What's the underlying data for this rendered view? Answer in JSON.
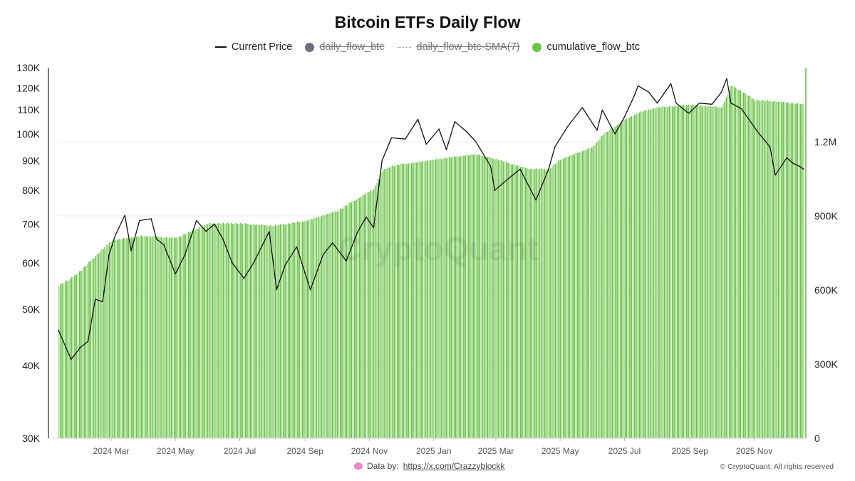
{
  "chart_data": {
    "type": "bar",
    "title": "Bitcoin ETFs Daily Flow",
    "legend": [
      {
        "label": "Current Price",
        "kind": "line",
        "color": "#111111",
        "disabled": false
      },
      {
        "label": "daily_flow_btc",
        "kind": "dot",
        "color": "#6e6e82",
        "disabled": true
      },
      {
        "label": "daily_flow_btc-SMA(7)",
        "kind": "dotted",
        "color": "#999999",
        "disabled": true
      },
      {
        "label": "cumulative_flow_btc",
        "kind": "dot",
        "color": "#6cc24a",
        "disabled": false
      }
    ],
    "legend_position": "top-center",
    "x_ticks": [
      "2024 Mar",
      "2024 May",
      "2024 Jul",
      "2024 Sep",
      "2024 Nov",
      "2025 Jan",
      "2025 Mar",
      "2025 May",
      "2025 Jul",
      "2025 Sep",
      "2025 Nov"
    ],
    "left_axis": {
      "scale": "log",
      "range": [
        30000,
        130000
      ],
      "ticks": [
        {
          "value": 30000,
          "label": "30K"
        },
        {
          "value": 40000,
          "label": "40K"
        },
        {
          "value": 50000,
          "label": "50K"
        },
        {
          "value": 60000,
          "label": "60K"
        },
        {
          "value": 70000,
          "label": "70K"
        },
        {
          "value": 80000,
          "label": "80K"
        },
        {
          "value": 90000,
          "label": "90K"
        },
        {
          "value": 100000,
          "label": "100K"
        },
        {
          "value": 110000,
          "label": "110K"
        },
        {
          "value": 120000,
          "label": "120K"
        },
        {
          "value": 130000,
          "label": "130K"
        }
      ]
    },
    "right_axis": {
      "scale": "linear",
      "range": [
        0,
        1500000
      ],
      "ticks": [
        {
          "value": 0,
          "label": "0"
        },
        {
          "value": 300000,
          "label": "300K"
        },
        {
          "value": 600000,
          "label": "600K"
        },
        {
          "value": 900000,
          "label": "900K"
        },
        {
          "value": 1200000,
          "label": "1.2M"
        }
      ]
    },
    "grid": true,
    "series": [
      {
        "name": "Current Price",
        "type": "line",
        "axis": "left",
        "color": "#111111",
        "x": [
          "2024-01-11",
          "2024-01-23",
          "2024-02-01",
          "2024-02-08",
          "2024-02-15",
          "2024-02-22",
          "2024-02-28",
          "2024-03-05",
          "2024-03-14",
          "2024-03-20",
          "2024-03-28",
          "2024-04-08",
          "2024-04-13",
          "2024-04-20",
          "2024-05-01",
          "2024-05-10",
          "2024-05-21",
          "2024-05-30",
          "2024-06-07",
          "2024-06-15",
          "2024-06-24",
          "2024-07-05",
          "2024-07-14",
          "2024-07-29",
          "2024-08-05",
          "2024-08-13",
          "2024-08-24",
          "2024-09-06",
          "2024-09-18",
          "2024-09-27",
          "2024-10-10",
          "2024-10-21",
          "2024-10-29",
          "2024-11-05",
          "2024-11-13",
          "2024-11-22",
          "2024-12-05",
          "2024-12-17",
          "2024-12-25",
          "2025-01-06",
          "2025-01-13",
          "2025-01-21",
          "2025-02-01",
          "2025-02-10",
          "2025-02-24",
          "2025-02-28",
          "2025-03-10",
          "2025-03-24",
          "2025-04-08",
          "2025-04-20",
          "2025-04-26",
          "2025-05-08",
          "2025-05-22",
          "2025-06-05",
          "2025-06-10",
          "2025-06-22",
          "2025-07-01",
          "2025-07-10",
          "2025-07-14",
          "2025-07-24",
          "2025-08-01",
          "2025-08-14",
          "2025-08-19",
          "2025-08-31",
          "2025-09-10",
          "2025-09-22",
          "2025-10-01",
          "2025-10-06",
          "2025-10-10",
          "2025-10-20",
          "2025-11-04",
          "2025-11-16",
          "2025-11-21",
          "2025-12-02",
          "2025-12-08",
          "2025-12-14",
          "2025-12-18"
        ],
        "values": [
          46000,
          41000,
          43000,
          44000,
          52000,
          51500,
          62000,
          67000,
          72500,
          63000,
          71000,
          71500,
          66000,
          64500,
          57500,
          62000,
          71000,
          68000,
          70000,
          66000,
          60000,
          56500,
          60000,
          68000,
          54000,
          59500,
          64000,
          54000,
          62000,
          65000,
          60500,
          68000,
          72000,
          69000,
          90000,
          98500,
          98000,
          106000,
          96000,
          102000,
          94000,
          105000,
          101000,
          97000,
          88000,
          80000,
          83000,
          87000,
          77000,
          87000,
          95000,
          103000,
          111000,
          101500,
          110000,
          100000,
          107000,
          116000,
          121000,
          118000,
          113000,
          122000,
          113000,
          108500,
          113000,
          112500,
          118000,
          124500,
          113000,
          110500,
          101000,
          95000,
          85000,
          91000,
          89000,
          88000,
          87000
        ]
      },
      {
        "name": "cumulative_flow_btc",
        "type": "bar",
        "axis": "right",
        "color": "#6cc24a",
        "x": [
          "2024-01-11",
          "2024-01-20",
          "2024-02-01",
          "2024-02-15",
          "2024-03-01",
          "2024-03-15",
          "2024-04-01",
          "2024-05-01",
          "2024-06-01",
          "2024-07-01",
          "2024-08-01",
          "2024-09-01",
          "2024-10-01",
          "2024-10-20",
          "2024-11-05",
          "2024-11-12",
          "2024-11-20",
          "2024-12-01",
          "2024-12-20",
          "2025-01-20",
          "2025-02-10",
          "2025-03-01",
          "2025-04-01",
          "2025-04-20",
          "2025-05-01",
          "2025-06-01",
          "2025-06-10",
          "2025-07-01",
          "2025-07-15",
          "2025-08-01",
          "2025-09-01",
          "2025-10-01",
          "2025-10-10",
          "2025-11-01",
          "2025-12-01",
          "2025-12-18"
        ],
        "values": [
          620000,
          640000,
          680000,
          740000,
          800000,
          810000,
          820000,
          810000,
          870000,
          870000,
          860000,
          880000,
          920000,
          970000,
          1010000,
          1080000,
          1100000,
          1110000,
          1120000,
          1140000,
          1150000,
          1130000,
          1090000,
          1090000,
          1130000,
          1180000,
          1230000,
          1290000,
          1320000,
          1340000,
          1350000,
          1340000,
          1430000,
          1370000,
          1360000,
          1350000
        ]
      }
    ]
  },
  "footer": {
    "source_label": "Data by:",
    "source_link": "https://x.com/Crazzyblockk",
    "copyright": "© CryptoQuant. All rights reserved"
  },
  "watermark": "CryptoQuant"
}
